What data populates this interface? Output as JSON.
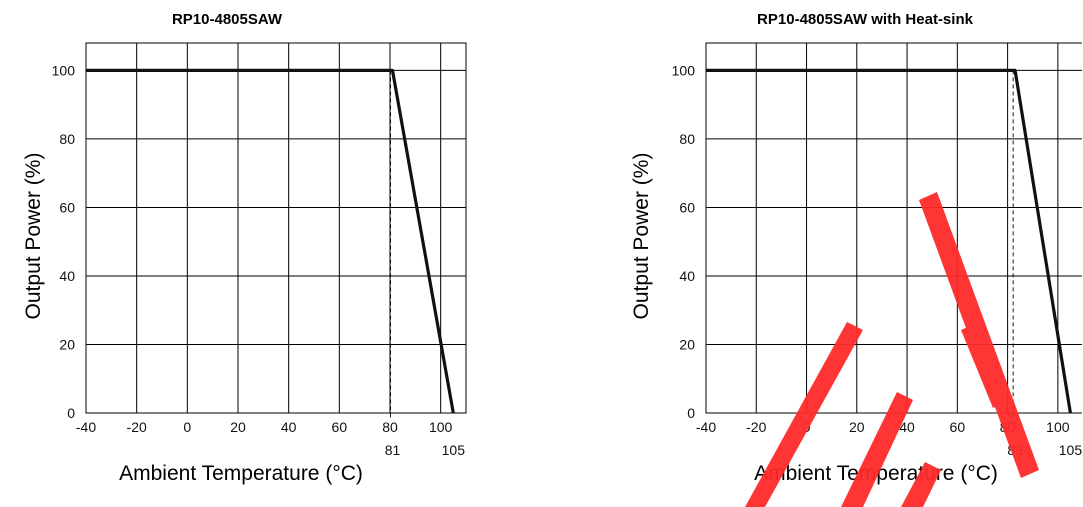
{
  "chart_data": [
    {
      "type": "line",
      "title": "RP10-4805SAW",
      "xlabel": "Ambient Temperature (°C)",
      "ylabel": "Output Power (%)",
      "xlim": [
        -40,
        110
      ],
      "ylim": [
        0,
        108
      ],
      "x_ticks": [
        -40,
        -20,
        0,
        20,
        40,
        60,
        80,
        100
      ],
      "x_tick_labels": [
        "-40",
        "-20",
        "0",
        "20",
        "40",
        "60",
        "80",
        "100"
      ],
      "y_ticks": [
        0,
        20,
        40,
        60,
        80,
        100
      ],
      "y_tick_labels": [
        "0",
        "20",
        "40",
        "60",
        "80",
        "100"
      ],
      "grid": true,
      "series": [
        {
          "x": [
            -40,
            81,
            105
          ],
          "y": [
            100,
            100,
            0
          ]
        }
      ],
      "annotations": [
        {
          "x": 81,
          "label": "81"
        },
        {
          "x": 105,
          "label": "105"
        }
      ]
    },
    {
      "type": "line",
      "title": "RP10-4805SAW with Heat-sink",
      "xlabel": "Ambient Temperature (°C)",
      "ylabel": "Output Power (%)",
      "xlim": [
        -40,
        110
      ],
      "ylim": [
        0,
        108
      ],
      "x_ticks": [
        -40,
        -20,
        0,
        20,
        40,
        60,
        80,
        100
      ],
      "x_tick_labels": [
        "-40",
        "-20",
        "0",
        "20",
        "40",
        "60",
        "80",
        "100"
      ],
      "y_ticks": [
        0,
        20,
        40,
        60,
        80,
        100
      ],
      "y_tick_labels": [
        "0",
        "20",
        "40",
        "60",
        "80",
        "100"
      ],
      "grid": true,
      "series": [
        {
          "x": [
            -40,
            83,
            105
          ],
          "y": [
            100,
            100,
            0
          ]
        }
      ],
      "annotations": [
        {
          "x": 83,
          "label": "83"
        },
        {
          "x": 105,
          "label": "105"
        }
      ]
    }
  ],
  "colors": {
    "curve": "#111111",
    "watermark": "#ff2a2a"
  }
}
